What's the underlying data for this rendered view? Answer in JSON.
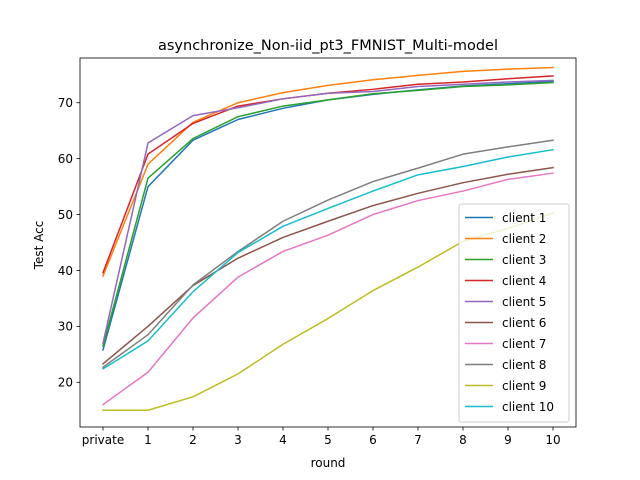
{
  "chart_data": {
    "type": "line",
    "title": "asynchronize_Non-iid_pt3_FMNIST_Multi-model",
    "xlabel": "round",
    "ylabel": "Test Acc",
    "x": [
      "private",
      "1",
      "2",
      "3",
      "4",
      "5",
      "6",
      "7",
      "8",
      "9",
      "10"
    ],
    "ylim": [
      12,
      78
    ],
    "yticks": [
      20,
      30,
      40,
      50,
      60,
      70
    ],
    "grid": false,
    "legend": "right",
    "series": [
      {
        "name": "client 1",
        "color": "#1f77b4",
        "values": [
          25.8,
          55.0,
          63.3,
          67.0,
          69.0,
          70.5,
          71.5,
          72.3,
          73.0,
          73.4,
          73.8
        ]
      },
      {
        "name": "client 2",
        "color": "#ff7f0e",
        "values": [
          39.0,
          59.0,
          66.5,
          70.0,
          71.8,
          73.1,
          74.1,
          74.9,
          75.6,
          76.0,
          76.3
        ]
      },
      {
        "name": "client 3",
        "color": "#2ca02c",
        "values": [
          26.5,
          56.5,
          63.6,
          67.5,
          69.4,
          70.5,
          71.6,
          72.2,
          72.9,
          73.2,
          73.6
        ]
      },
      {
        "name": "client 4",
        "color": "#d62728",
        "values": [
          39.6,
          60.8,
          66.3,
          69.4,
          70.7,
          71.7,
          72.4,
          73.3,
          73.7,
          74.3,
          74.8
        ]
      },
      {
        "name": "client 5",
        "color": "#9467bd",
        "values": [
          27.0,
          62.8,
          67.7,
          69.1,
          70.7,
          71.7,
          72.0,
          72.9,
          73.3,
          73.7,
          74.0
        ]
      },
      {
        "name": "client 6",
        "color": "#8c564b",
        "values": [
          23.3,
          30.0,
          37.3,
          42.2,
          45.9,
          48.8,
          51.6,
          53.8,
          55.7,
          57.2,
          58.4
        ]
      },
      {
        "name": "client 7",
        "color": "#e377c2",
        "values": [
          16.0,
          21.8,
          31.5,
          38.8,
          43.4,
          46.3,
          50.0,
          52.5,
          54.2,
          56.3,
          57.4
        ]
      },
      {
        "name": "client 8",
        "color": "#7f7f7f",
        "values": [
          22.7,
          28.5,
          37.4,
          43.4,
          48.8,
          52.6,
          55.9,
          58.3,
          60.8,
          62.1,
          63.3
        ]
      },
      {
        "name": "client 9",
        "color": "#bcbd22",
        "values": [
          15.0,
          15.0,
          17.4,
          21.5,
          26.8,
          31.4,
          36.4,
          40.6,
          45.2,
          47.5,
          50.3
        ]
      },
      {
        "name": "client 10",
        "color": "#17becf",
        "values": [
          22.4,
          27.4,
          36.2,
          43.2,
          47.9,
          51.1,
          54.2,
          57.1,
          58.6,
          60.3,
          61.6
        ]
      }
    ]
  }
}
